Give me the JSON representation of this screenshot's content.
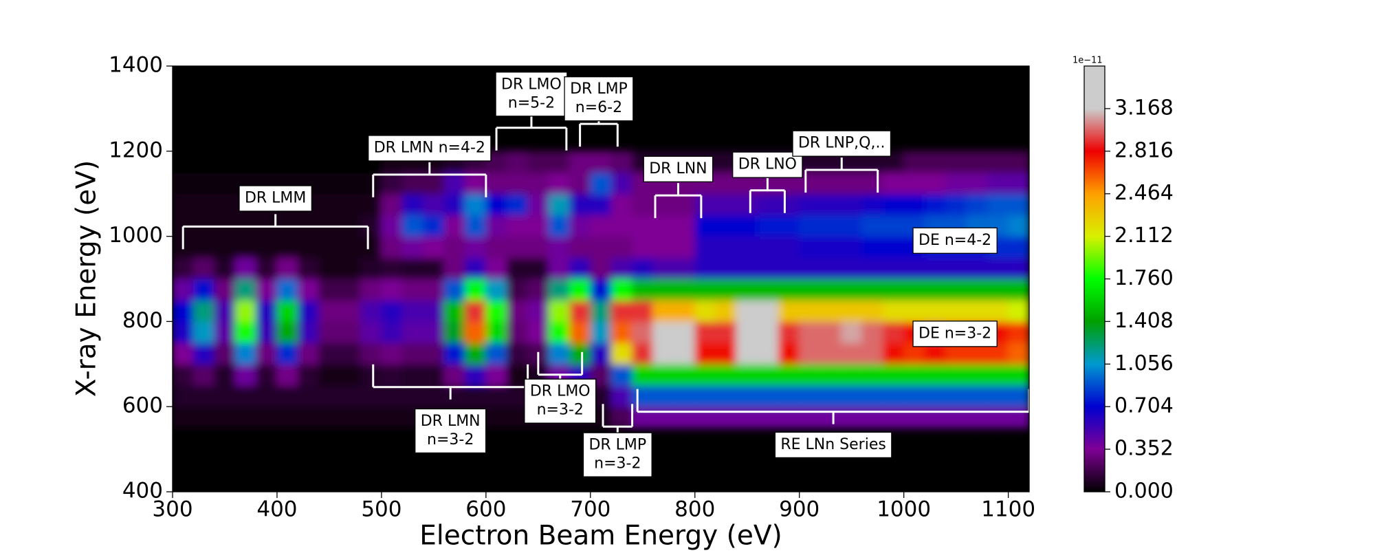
{
  "chart_data": {
    "type": "heatmap",
    "xlabel": "Electron Beam Energy (eV)",
    "ylabel": "X-ray Energy (eV)",
    "xlim": [
      300,
      1120
    ],
    "ylim": [
      400,
      1400
    ],
    "xticks": [
      300,
      400,
      500,
      600,
      700,
      800,
      900,
      1000,
      1100
    ],
    "yticks": [
      400,
      600,
      800,
      1000,
      1200,
      1400
    ],
    "x": [
      310,
      330,
      350,
      370,
      390,
      410,
      430,
      450,
      470,
      490,
      510,
      530,
      550,
      570,
      590,
      610,
      630,
      650,
      670,
      690,
      710,
      730,
      750,
      770,
      790,
      810,
      830,
      850,
      870,
      890,
      910,
      930,
      950,
      970,
      990,
      1010,
      1030,
      1050,
      1070,
      1090,
      1110
    ],
    "y": [
      575,
      625,
      675,
      725,
      775,
      825,
      875,
      925,
      975,
      1025,
      1075,
      1125,
      1175
    ],
    "z": [
      [
        0.05,
        0.05,
        0.05,
        0.05,
        0.05,
        0.05,
        0.05,
        0.05,
        0.05,
        0.05,
        0.05,
        0.05,
        0.05,
        0.05,
        0.05,
        0.05,
        0.05,
        0.05,
        0.05,
        0.05,
        0.05,
        0.2,
        0.4,
        0.4,
        0.4,
        0.4,
        0.4,
        0.4,
        0.4,
        0.4,
        0.4,
        0.4,
        0.4,
        0.4,
        0.4,
        0.4,
        0.4,
        0.4,
        0.4,
        0.4,
        0.4
      ],
      [
        0.1,
        0.1,
        0.1,
        0.1,
        0.1,
        0.1,
        0.1,
        0.1,
        0.1,
        0.1,
        0.1,
        0.1,
        0.1,
        0.1,
        0.1,
        0.1,
        0.1,
        0.1,
        0.1,
        0.1,
        0.1,
        0.5,
        0.9,
        0.9,
        0.9,
        0.9,
        0.9,
        0.9,
        0.9,
        0.9,
        0.9,
        0.9,
        0.9,
        0.9,
        0.9,
        0.9,
        0.9,
        0.9,
        0.9,
        0.9,
        0.9
      ],
      [
        0.14,
        0.24,
        0.1,
        0.4,
        0.12,
        0.32,
        0.12,
        0.06,
        0.06,
        0.1,
        0.12,
        0.1,
        0.1,
        0.3,
        0.58,
        0.36,
        0.06,
        0.08,
        0.4,
        0.58,
        0.24,
        0.9,
        1.6,
        1.6,
        1.6,
        1.6,
        1.6,
        1.6,
        1.6,
        1.6,
        1.6,
        1.6,
        1.6,
        1.6,
        1.6,
        1.6,
        1.6,
        1.6,
        1.6,
        1.6,
        1.6
      ],
      [
        0.35,
        0.6,
        0.25,
        1.0,
        0.3,
        0.8,
        0.3,
        0.15,
        0.15,
        0.25,
        0.3,
        0.25,
        0.25,
        0.75,
        1.45,
        0.9,
        0.15,
        0.2,
        1.0,
        1.45,
        0.6,
        2.2,
        2.9,
        3.3,
        3.3,
        2.8,
        2.8,
        3.4,
        3.4,
        2.8,
        3.0,
        3.0,
        3.0,
        3.0,
        2.8,
        2.7,
        2.8,
        2.7,
        2.7,
        2.7,
        2.6
      ],
      [
        0.63,
        1.08,
        0.45,
        1.8,
        0.54,
        1.44,
        0.54,
        0.27,
        0.27,
        0.45,
        0.54,
        0.45,
        0.45,
        1.35,
        2.6,
        1.62,
        0.27,
        0.36,
        1.8,
        2.6,
        1.08,
        2.6,
        3.0,
        3.3,
        3.3,
        2.9,
        2.9,
        3.4,
        3.4,
        2.9,
        3.0,
        3.0,
        3.1,
        3.0,
        2.9,
        2.8,
        2.9,
        2.8,
        2.8,
        2.8,
        2.7
      ],
      [
        0.7,
        1.2,
        0.5,
        2.0,
        0.6,
        1.6,
        0.6,
        0.3,
        0.3,
        0.5,
        0.6,
        0.5,
        0.5,
        1.5,
        2.9,
        1.8,
        0.3,
        0.4,
        2.0,
        2.9,
        1.2,
        2.9,
        2.9,
        2.4,
        2.4,
        2.2,
        2.3,
        3.2,
        3.3,
        2.3,
        2.3,
        2.3,
        2.3,
        2.3,
        2.2,
        2.2,
        2.2,
        2.2,
        2.2,
        2.2,
        2.1
      ],
      [
        0.42,
        0.72,
        0.3,
        1.2,
        0.36,
        0.96,
        0.36,
        0.18,
        0.18,
        0.3,
        0.36,
        0.3,
        0.3,
        0.9,
        1.74,
        1.08,
        0.18,
        0.24,
        1.2,
        1.74,
        0.72,
        1.74,
        1.5,
        1.5,
        1.5,
        1.5,
        1.5,
        1.5,
        1.5,
        1.5,
        1.5,
        1.5,
        1.5,
        1.5,
        1.5,
        1.5,
        1.5,
        1.5,
        1.5,
        1.5,
        1.5
      ],
      [
        0.14,
        0.24,
        0.1,
        0.4,
        0.12,
        0.32,
        0.12,
        0.06,
        0.06,
        0.1,
        0.12,
        0.1,
        0.1,
        0.3,
        0.58,
        0.36,
        0.1,
        0.1,
        0.4,
        0.58,
        0.3,
        0.5,
        0.6,
        0.5,
        0.5,
        0.6,
        0.6,
        0.6,
        0.6,
        0.6,
        0.6,
        0.6,
        0.6,
        0.6,
        0.6,
        0.6,
        0.6,
        0.6,
        0.6,
        0.6,
        0.6
      ],
      [
        0.05,
        0.05,
        0.05,
        0.05,
        0.05,
        0.05,
        0.05,
        0.05,
        0.05,
        0.05,
        0.3,
        0.4,
        0.35,
        0.3,
        0.4,
        0.3,
        0.3,
        0.3,
        0.4,
        0.3,
        0.3,
        0.3,
        0.35,
        0.35,
        0.35,
        0.6,
        0.6,
        0.6,
        0.6,
        0.6,
        0.65,
        0.65,
        0.65,
        0.7,
        0.7,
        0.7,
        0.75,
        0.75,
        0.75,
        0.8,
        0.8
      ],
      [
        0.05,
        0.05,
        0.05,
        0.05,
        0.05,
        0.05,
        0.05,
        0.05,
        0.05,
        0.1,
        0.4,
        0.9,
        0.8,
        0.35,
        0.9,
        0.4,
        0.35,
        0.35,
        0.9,
        0.4,
        0.35,
        0.35,
        0.35,
        0.35,
        0.35,
        0.7,
        0.7,
        0.7,
        0.75,
        0.75,
        0.8,
        0.8,
        0.8,
        0.85,
        0.85,
        0.85,
        0.9,
        0.9,
        0.95,
        0.95,
        1.0
      ],
      [
        0.05,
        0.05,
        0.05,
        0.05,
        0.05,
        0.05,
        0.05,
        0.05,
        0.05,
        0.05,
        0.3,
        0.6,
        0.5,
        0.6,
        1.0,
        0.7,
        0.8,
        0.4,
        1.1,
        0.6,
        0.6,
        0.35,
        0.3,
        0.3,
        0.3,
        0.5,
        0.5,
        0.5,
        0.55,
        0.55,
        0.6,
        0.6,
        0.6,
        0.65,
        0.7,
        0.7,
        0.75,
        0.8,
        0.85,
        0.9,
        0.9
      ],
      [
        0.02,
        0.02,
        0.02,
        0.02,
        0.02,
        0.02,
        0.02,
        0.02,
        0.02,
        0.02,
        0.15,
        0.2,
        0.2,
        0.5,
        0.35,
        0.3,
        0.3,
        0.3,
        0.35,
        0.3,
        0.9,
        0.5,
        0.3,
        0.3,
        0.3,
        0.3,
        0.3,
        0.3,
        0.3,
        0.3,
        0.3,
        0.3,
        0.3,
        0.3,
        0.35,
        0.35,
        0.35,
        0.4,
        0.4,
        0.45,
        0.45
      ],
      [
        0,
        0,
        0,
        0,
        0,
        0,
        0,
        0,
        0,
        0,
        0.05,
        0.05,
        0.05,
        0.1,
        0.15,
        0.2,
        0.25,
        0.2,
        0.2,
        0.3,
        0.3,
        0.25,
        0.1,
        0.1,
        0.1,
        0.1,
        0.1,
        0.1,
        0.1,
        0.1,
        0.1,
        0.1,
        0.1,
        0.1,
        0.1,
        0.2,
        0.2,
        0.2,
        0.2,
        0.2,
        0.2
      ]
    ],
    "clim": [
      0,
      3.52
    ],
    "cticks": [
      {
        "value": 0,
        "label": "0.000"
      },
      0.352,
      0.704,
      1.056,
      1.408,
      {
        "value": 1.76,
        "label": "1.760"
      },
      2.112,
      2.464,
      2.816,
      3.168
    ],
    "colorbar_offset": "1e−11",
    "colors": [
      "#000000",
      "#7f0095",
      "#0000d0",
      "#0099d0",
      "#00a000",
      "#00ff00",
      "#d8f000",
      "#ffa000",
      "#ee0000",
      "#cccccc",
      "#cccccc"
    ],
    "annotations": [
      {
        "text": "DR LMM",
        "xrange": [
          310,
          487
        ]
      },
      {
        "text": "DR LMN n=4-2",
        "xrange": [
          492,
          600
        ]
      },
      {
        "text": [
          "DR LMO",
          "n=5-2"
        ],
        "xrange": [
          610,
          677
        ]
      },
      {
        "text": [
          "DR LMP",
          "n=6-2"
        ],
        "xrange": [
          690,
          726
        ]
      },
      {
        "text": "DR LNN",
        "xrange": [
          762,
          806
        ]
      },
      {
        "text": "DR LNO",
        "xrange": [
          853,
          886
        ]
      },
      {
        "text": "DR LNP,Q,..",
        "xrange": [
          906,
          975
        ]
      },
      {
        "text": [
          "DR LMN",
          "n=3-2"
        ],
        "xrange": [
          492,
          640
        ]
      },
      {
        "text": [
          "DR LMO",
          "n=3-2"
        ],
        "xrange": [
          650,
          692
        ]
      },
      {
        "text": [
          "DR LMP",
          "n=3-2"
        ],
        "xrange": [
          712,
          740
        ]
      },
      {
        "text": "RE LNn Series",
        "xrange": [
          745,
          1120
        ]
      },
      {
        "text": "DE n=4-2"
      },
      {
        "text": "DE n=3-2"
      }
    ]
  }
}
